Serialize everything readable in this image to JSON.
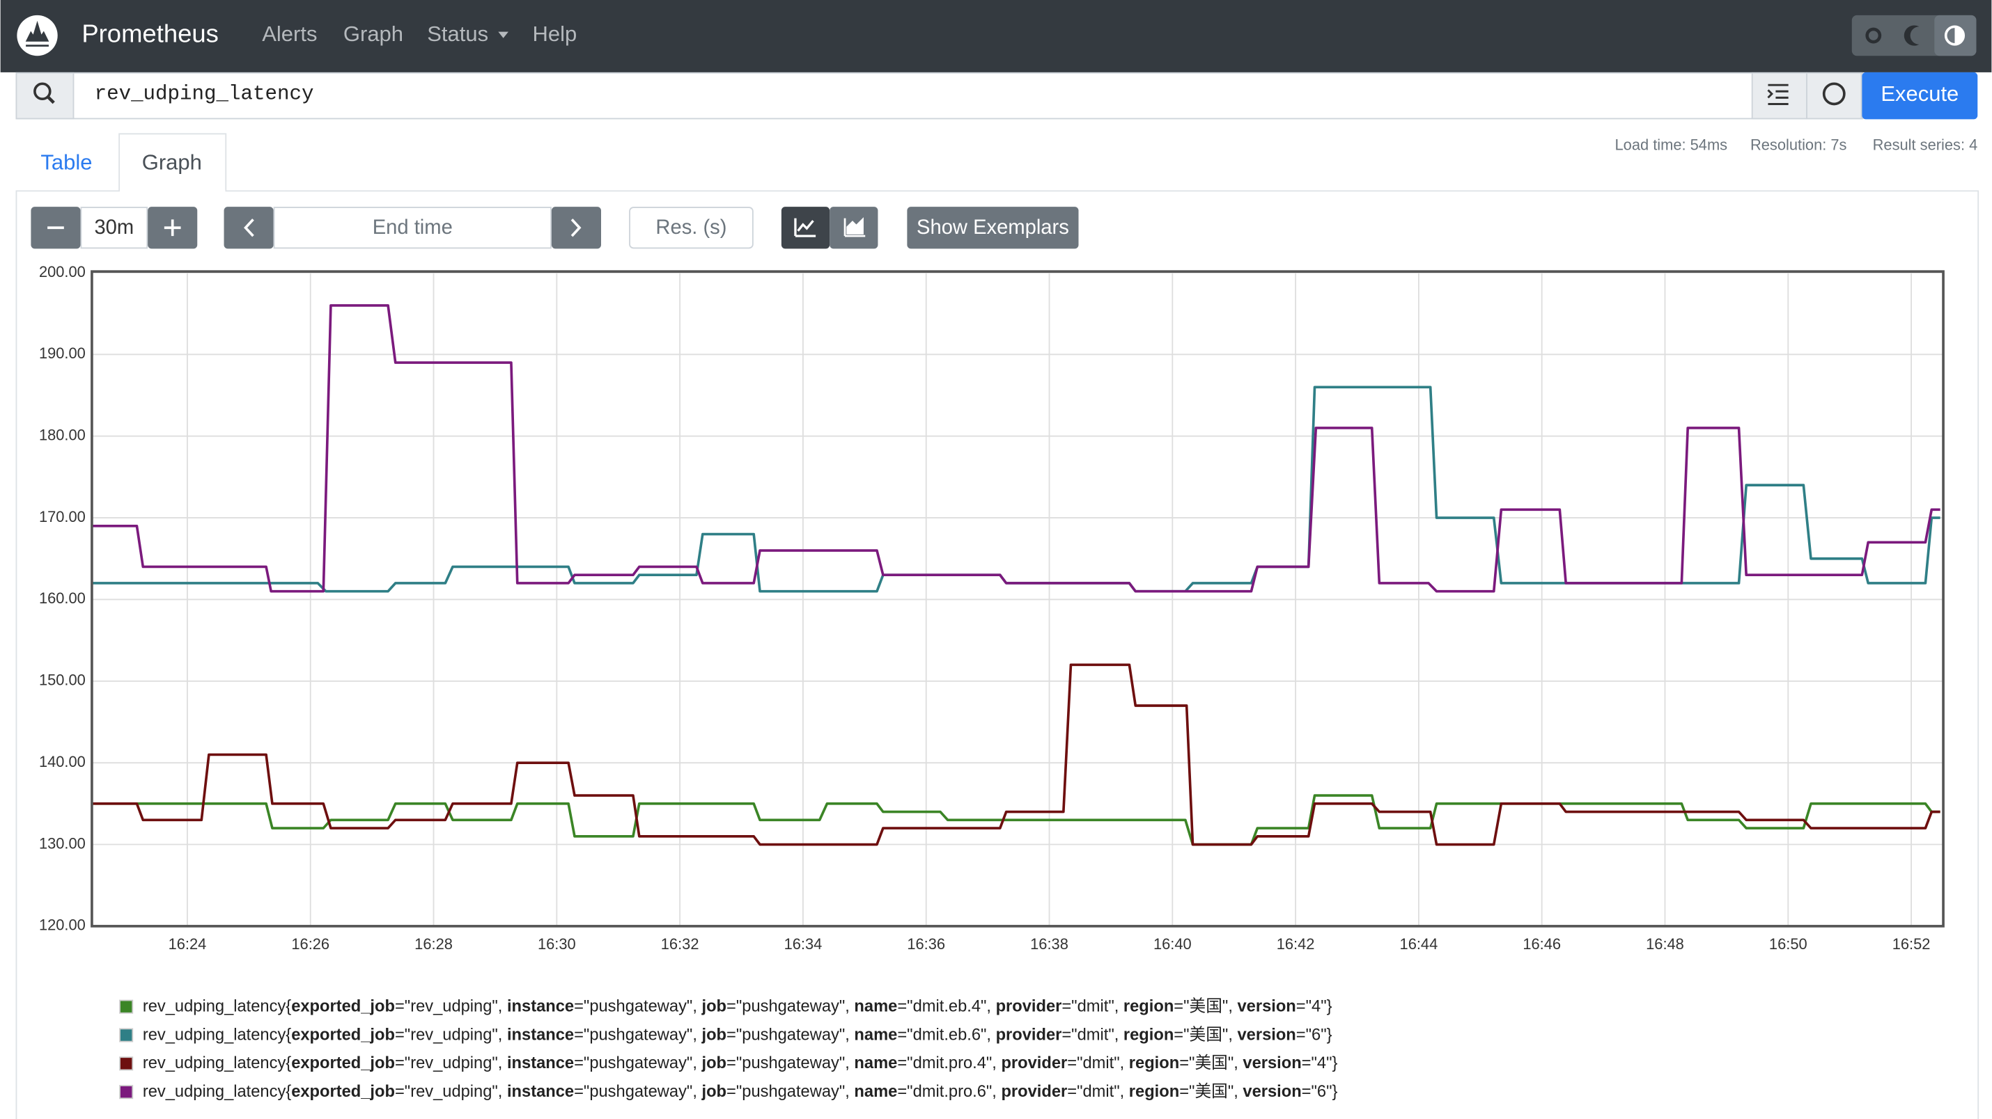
{
  "nav": {
    "brand": "Prometheus",
    "links": [
      "Alerts",
      "Graph",
      "Status",
      "Help"
    ]
  },
  "query": "rev_udping_latency",
  "execute": "Execute",
  "stats": [
    "Load time: 54ms",
    "Resolution: 7s",
    "Result series: 4"
  ],
  "tabs": [
    "Table",
    "Graph"
  ],
  "controls": {
    "range": "30m",
    "end_time": "End time",
    "resolution": "Res. (s)",
    "exemplars": "Show Exemplars"
  },
  "chart_data": {
    "type": "line",
    "grid": true,
    "xlim": [
      22.45,
      52.52
    ],
    "ylim": [
      120,
      200
    ],
    "xticks": [
      {
        "value": 24,
        "label": "16:24"
      },
      {
        "value": 26,
        "label": "16:26"
      },
      {
        "value": 28,
        "label": "16:28"
      },
      {
        "value": 30,
        "label": "16:30"
      },
      {
        "value": 32,
        "label": "16:32"
      },
      {
        "value": 34,
        "label": "16:34"
      },
      {
        "value": 36,
        "label": "16:36"
      },
      {
        "value": 38,
        "label": "16:38"
      },
      {
        "value": 40,
        "label": "16:40"
      },
      {
        "value": 42,
        "label": "16:42"
      },
      {
        "value": 44,
        "label": "16:44"
      },
      {
        "value": 46,
        "label": "16:46"
      },
      {
        "value": 48,
        "label": "16:48"
      },
      {
        "value": 50,
        "label": "16:50"
      },
      {
        "value": 52,
        "label": "16:52"
      }
    ],
    "yticks": [
      {
        "value": 120,
        "label": "120.00"
      },
      {
        "value": 130,
        "label": "130.00"
      },
      {
        "value": 140,
        "label": "140.00"
      },
      {
        "value": 150,
        "label": "150.00"
      },
      {
        "value": 160,
        "label": "160.00"
      },
      {
        "value": 170,
        "label": "170.00"
      },
      {
        "value": 180,
        "label": "180.00"
      },
      {
        "value": 190,
        "label": "190.00"
      },
      {
        "value": 200,
        "label": "200.00"
      }
    ],
    "series": [
      {
        "name": "rev_udping_latency{exported_job=\"rev_udping\", instance=\"pushgateway\", job=\"pushgateway\", name=\"dmit.eb.4\", provider=\"dmit\", region=\"美国\", version=\"4\"}",
        "color": "#3b8526",
        "x": [
          22.45,
          25.28,
          25.38,
          26.21,
          26.33,
          27.26,
          27.38,
          28.19,
          28.31,
          29.26,
          29.36,
          30.19,
          30.29,
          31.24,
          31.34,
          33.2,
          33.3,
          34.27,
          34.39,
          35.2,
          35.3,
          36.23,
          36.35,
          40.21,
          40.33,
          41.28,
          41.38,
          42.21,
          42.31,
          43.24,
          43.36,
          44.19,
          44.29,
          48.27,
          48.37,
          49.2,
          49.32,
          50.25,
          50.37,
          52.23,
          52.33,
          52.47
        ],
        "values": [
          135,
          135,
          132,
          132,
          133,
          133,
          135,
          135,
          133,
          133,
          135,
          135,
          131,
          131,
          135,
          135,
          133,
          133,
          135,
          135,
          134,
          134,
          133,
          133,
          130,
          130,
          132,
          132,
          136,
          136,
          132,
          132,
          135,
          135,
          133,
          133,
          132,
          132,
          135,
          135,
          134,
          134
        ]
      },
      {
        "name": "rev_udping_latency{exported_job=\"rev_udping\", instance=\"pushgateway\", job=\"pushgateway\", name=\"dmit.eb.6\", provider=\"dmit\", region=\"美国\", version=\"6\"}",
        "color": "#2f7f86",
        "x": [
          22.45,
          26.12,
          26.25,
          27.26,
          27.38,
          28.19,
          28.31,
          30.19,
          30.29,
          31.24,
          31.34,
          32.27,
          32.37,
          33.2,
          33.3,
          35.2,
          35.3,
          37.2,
          37.3,
          39.3,
          39.4,
          40.21,
          40.33,
          41.28,
          41.38,
          42.21,
          42.31,
          44.19,
          44.29,
          45.22,
          45.34,
          49.2,
          49.32,
          50.25,
          50.37,
          51.2,
          51.3,
          52.23,
          52.33,
          52.47
        ],
        "values": [
          162,
          162,
          161,
          161,
          162,
          162,
          164,
          164,
          162,
          162,
          163,
          163,
          168,
          168,
          161,
          161,
          163,
          163,
          162,
          162,
          161,
          161,
          162,
          162,
          164,
          164,
          186,
          186,
          170,
          170,
          162,
          162,
          174,
          174,
          165,
          165,
          162,
          162,
          170,
          170
        ]
      },
      {
        "name": "rev_udping_latency{exported_job=\"rev_udping\", instance=\"pushgateway\", job=\"pushgateway\", name=\"dmit.pro.4\", provider=\"dmit\", region=\"美国\", version=\"4\"}",
        "color": "#6e0f0f",
        "x": [
          22.45,
          23.18,
          23.28,
          24.23,
          24.35,
          25.28,
          25.38,
          26.21,
          26.33,
          27.26,
          27.38,
          28.19,
          28.31,
          29.26,
          29.36,
          30.19,
          30.29,
          31.24,
          31.34,
          33.2,
          33.3,
          35.2,
          35.3,
          37.2,
          37.3,
          38.23,
          38.35,
          39.3,
          39.4,
          40.23,
          40.33,
          41.28,
          41.38,
          42.21,
          42.31,
          43.24,
          43.36,
          44.19,
          44.29,
          45.22,
          45.34,
          46.29,
          46.39,
          49.2,
          49.32,
          50.25,
          50.37,
          52.23,
          52.33,
          52.47
        ],
        "values": [
          135,
          135,
          133,
          133,
          141,
          141,
          135,
          135,
          132,
          132,
          133,
          133,
          135,
          135,
          140,
          140,
          136,
          136,
          131,
          131,
          130,
          130,
          132,
          132,
          134,
          134,
          152,
          152,
          147,
          147,
          130,
          130,
          131,
          131,
          135,
          135,
          134,
          134,
          130,
          130,
          135,
          135,
          134,
          134,
          133,
          133,
          132,
          132,
          134,
          134
        ]
      },
      {
        "name": "rev_udping_latency{exported_job=\"rev_udping\", instance=\"pushgateway\", job=\"pushgateway\", name=\"dmit.pro.6\", provider=\"dmit\", region=\"美国\", version=\"6\"}",
        "color": "#7b1a7d",
        "x": [
          22.45,
          23.18,
          23.28,
          25.28,
          25.36,
          26.21,
          26.33,
          27.26,
          27.38,
          29.26,
          29.36,
          30.19,
          30.29,
          31.24,
          31.34,
          32.27,
          32.37,
          33.2,
          33.3,
          35.2,
          35.3,
          37.2,
          37.3,
          39.3,
          39.4,
          41.28,
          41.38,
          42.21,
          42.33,
          43.24,
          43.36,
          44.16,
          44.29,
          45.22,
          45.34,
          46.29,
          46.39,
          48.27,
          48.37,
          49.2,
          49.32,
          51.2,
          51.3,
          52.23,
          52.33,
          52.47
        ],
        "values": [
          169,
          169,
          164,
          164,
          161,
          161,
          196,
          196,
          189,
          189,
          162,
          162,
          163,
          163,
          164,
          164,
          162,
          162,
          166,
          166,
          163,
          163,
          162,
          162,
          161,
          161,
          164,
          164,
          181,
          181,
          162,
          162,
          161,
          161,
          171,
          171,
          162,
          162,
          181,
          181,
          163,
          163,
          167,
          167,
          171,
          171
        ]
      }
    ]
  }
}
